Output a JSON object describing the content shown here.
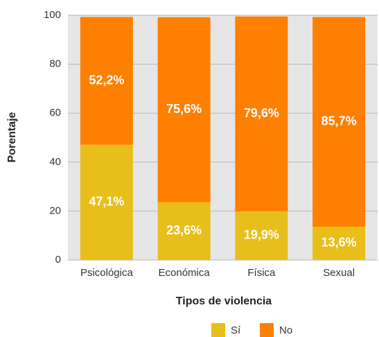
{
  "chart_data": {
    "type": "stacked_bar",
    "x_label": "Tipos de violencia",
    "y_label": "Porentaje",
    "categories": [
      "Psicológica",
      "Económica",
      "Física",
      "Sexual"
    ],
    "series": [
      {
        "name": "Sí",
        "color": "#e8bf1a",
        "values": [
          47.1,
          23.6,
          19.9,
          13.6
        ],
        "value_labels": [
          "47,1%",
          "23,6%",
          "19,9%",
          "13,6%"
        ]
      },
      {
        "name": "No",
        "color": "#ff7f00",
        "values": [
          52.2,
          75.6,
          79.6,
          85.7
        ],
        "value_labels": [
          "52,2%",
          "75,6%",
          "79,6%",
          "85,7%"
        ]
      }
    ],
    "ylim": [
      0,
      100
    ],
    "yticks": [
      0,
      20,
      40,
      60,
      80,
      100
    ],
    "grid": true
  }
}
